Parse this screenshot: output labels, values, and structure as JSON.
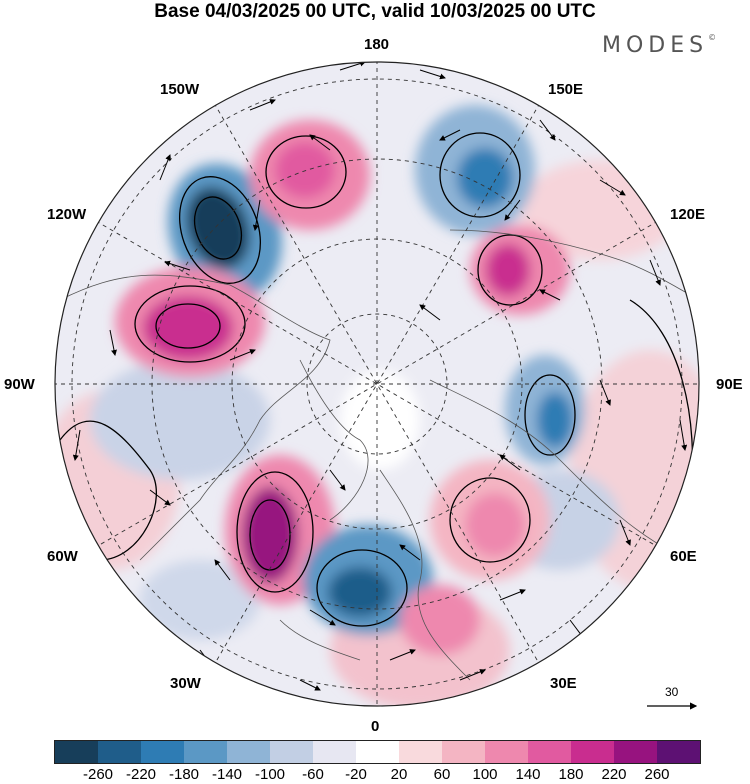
{
  "title": "Base 04/03/2025 00 UTC, valid 10/03/2025 00 UTC",
  "brand": "MODES",
  "brand_mark": "©",
  "map": {
    "projection": "north-polar-stereographic",
    "longitude_labels": {
      "top": "180",
      "bottom": "0",
      "left": "90W",
      "right": "90E",
      "upper_left": "150W",
      "upper_left_mid": "120W",
      "upper_right": "150E",
      "upper_right_mid": "120E",
      "lower_left": "60W",
      "lower_left_bottom": "30W",
      "lower_right": "60E",
      "lower_right_bottom": "30E"
    },
    "reference_vector": "30",
    "colors": {
      "ocean_land_background": "#ffffff",
      "coastline": "#555555",
      "contour": "#000000",
      "graticule": "#333333",
      "wind_arrow": "#000000"
    }
  },
  "colorbar": {
    "ticks": [
      "-260",
      "-220",
      "-180",
      "-140",
      "-100",
      "-60",
      "-20",
      "20",
      "60",
      "100",
      "140",
      "180",
      "220",
      "260"
    ],
    "colors": [
      "#173e5a",
      "#1f5d8a",
      "#2e7cb4",
      "#5b98c5",
      "#8fb4d6",
      "#c2cfe4",
      "#e7e7f2",
      "#ffffff",
      "#f9dadd",
      "#f4b5c3",
      "#ee88ae",
      "#e15aa0",
      "#c92d8f",
      "#97137f",
      "#5d1173"
    ]
  }
}
